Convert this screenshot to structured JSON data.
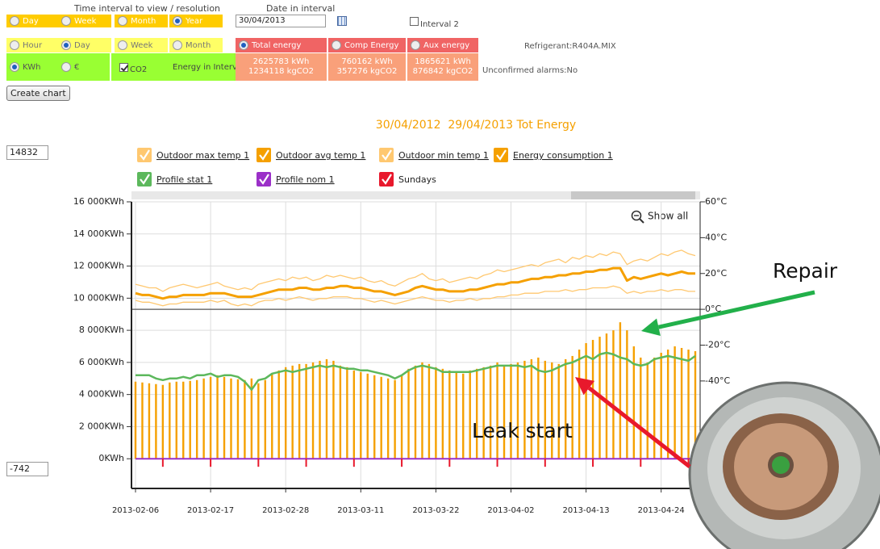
{
  "controls": {
    "interval_label": "Time interval to view / resolution",
    "date_label": "Date in interval",
    "interval_options": [
      "Day",
      "Week",
      "Month",
      "Year"
    ],
    "interval_selected": 3,
    "resolution_options": [
      "Hour",
      "Day",
      "Week",
      "Month"
    ],
    "resolution_selected": 1,
    "unit_options": [
      "KWh",
      "€"
    ],
    "unit_selected": 0,
    "co2": {
      "label": "CO2",
      "checked": true
    },
    "date_value": "30/04/2013",
    "interval2": {
      "label": "Interval 2",
      "checked": false
    },
    "energy_in_interval": "Energy in Interval",
    "energy_types": [
      {
        "label": "Total energy",
        "kwh": "2625783 kWh",
        "co2": "1234118 kgCO2"
      },
      {
        "label": "Comp Energy",
        "kwh": "760162 kWh",
        "co2": "357276 kgCO2"
      },
      {
        "label": "Aux energy",
        "kwh": "1865621 kWh",
        "co2": "876842 kgCO2"
      }
    ],
    "energy_selected": 0,
    "refrigerant": "Refrigerant:R404A.MIX",
    "alarms": "Unconfirmed alarms:No",
    "button": "Create chart",
    "range_max": "14832",
    "range_min": "-742"
  },
  "chart_data": {
    "type": "bar",
    "title": "30/04/2012  29/04/2013 Tot Energy",
    "zoom_label": "Show all",
    "annotations": [
      "Repair",
      "Leak start"
    ],
    "categories": [
      "2013-02-06",
      null,
      null,
      null,
      null,
      null,
      null,
      null,
      null,
      null,
      null,
      "2013-02-17",
      null,
      null,
      null,
      null,
      null,
      null,
      null,
      null,
      null,
      null,
      "2013-02-28",
      null,
      null,
      null,
      null,
      null,
      null,
      null,
      null,
      null,
      null,
      "2013-03-11",
      null,
      null,
      null,
      null,
      null,
      null,
      null,
      null,
      null,
      null,
      "2013-03-22",
      null,
      null,
      null,
      null,
      null,
      null,
      null,
      null,
      null,
      null,
      "2013-04-02",
      null,
      null,
      null,
      null,
      null,
      null,
      null,
      null,
      null,
      null,
      "2013-04-13",
      null,
      null,
      null,
      null,
      null,
      null,
      null,
      null,
      null,
      null,
      "2013-04-24",
      null,
      null,
      null,
      null,
      null
    ],
    "ylim": [
      -1850,
      16000
    ],
    "yticks": [
      {
        "value": 0,
        "label": "0KWh"
      },
      {
        "value": 2000,
        "label": "2 000KWh"
      },
      {
        "value": 4000,
        "label": "4 000KWh"
      },
      {
        "value": 6000,
        "label": "6 000KWh"
      },
      {
        "value": 8000,
        "label": "8 000KWh"
      },
      {
        "value": 10000,
        "label": "10 000KWh"
      },
      {
        "value": 12000,
        "label": "12 000KWh"
      },
      {
        "value": 14000,
        "label": "14 000KWh"
      },
      {
        "value": 16000,
        "label": "16 000KWh"
      }
    ],
    "y2lim": [
      -100,
      60
    ],
    "y2ticks": [
      {
        "value": -40,
        "label": "-40°C"
      },
      {
        "value": -20,
        "label": "-20°C"
      },
      {
        "value": 0,
        "label": "0°C"
      },
      {
        "value": 20,
        "label": "20°C"
      },
      {
        "value": 40,
        "label": "40°C"
      },
      {
        "value": 60,
        "label": "60°C"
      }
    ],
    "grid": true,
    "series": [
      {
        "name": "Outdoor max temp 1",
        "type": "line",
        "axis": "y2",
        "color": "#ffc870",
        "width": 1.3,
        "values": [
          14,
          13,
          12,
          12,
          10,
          12,
          13,
          14,
          13,
          12,
          13,
          14,
          15,
          13,
          12,
          11,
          12,
          11,
          14,
          15,
          16,
          17,
          16,
          18,
          17,
          18,
          16,
          17,
          19,
          18,
          19,
          18,
          17,
          18,
          16,
          15,
          16,
          14,
          13,
          15,
          17,
          18,
          20,
          17,
          16,
          17,
          15,
          16,
          17,
          18,
          17,
          19,
          20,
          22,
          21,
          22,
          23,
          24,
          25,
          24,
          26,
          27,
          28,
          26,
          29,
          28,
          30,
          29,
          31,
          30,
          32,
          31,
          25,
          27,
          28,
          27,
          29,
          31,
          30,
          32,
          33,
          31,
          30
        ]
      },
      {
        "name": "Outdoor avg temp 1",
        "type": "line",
        "axis": "y2",
        "color": "#f5a000",
        "width": 3,
        "values": [
          9,
          8,
          8,
          7,
          6,
          7,
          7,
          8,
          8,
          8,
          8,
          9,
          9,
          9,
          8,
          7,
          7,
          7,
          8,
          9,
          10,
          11,
          11,
          11,
          12,
          12,
          11,
          11,
          12,
          12,
          13,
          13,
          12,
          12,
          11,
          10,
          10,
          9,
          8,
          9,
          10,
          12,
          13,
          12,
          11,
          11,
          10,
          10,
          10,
          11,
          11,
          12,
          13,
          14,
          14,
          15,
          15,
          16,
          17,
          17,
          18,
          18,
          19,
          19,
          20,
          20,
          21,
          21,
          22,
          22,
          23,
          23,
          16,
          18,
          17,
          18,
          19,
          20,
          19,
          20,
          21,
          20,
          20
        ]
      },
      {
        "name": "Outdoor min temp 1",
        "type": "line",
        "axis": "y2",
        "color": "#ffc870",
        "width": 1.3,
        "values": [
          5,
          4,
          4,
          3,
          2,
          3,
          3,
          4,
          4,
          4,
          4,
          5,
          4,
          5,
          3,
          2,
          3,
          2,
          4,
          5,
          5,
          6,
          5,
          6,
          7,
          6,
          5,
          6,
          6,
          7,
          7,
          7,
          6,
          6,
          5,
          4,
          5,
          4,
          3,
          4,
          5,
          6,
          7,
          6,
          5,
          5,
          4,
          5,
          5,
          6,
          5,
          6,
          6,
          7,
          7,
          8,
          8,
          9,
          9,
          9,
          10,
          10,
          10,
          11,
          10,
          11,
          11,
          12,
          12,
          12,
          13,
          12,
          9,
          10,
          9,
          10,
          10,
          11,
          10,
          11,
          11,
          10,
          10
        ]
      },
      {
        "name": "Energy consumption 1",
        "type": "bar",
        "color": "#f5a000",
        "values": [
          4800,
          4750,
          4700,
          4650,
          4600,
          4750,
          4800,
          4800,
          4850,
          4900,
          5000,
          5100,
          5200,
          5100,
          5000,
          4950,
          4900,
          5000,
          4700,
          4900,
          5300,
          5500,
          5700,
          5800,
          5900,
          5900,
          6000,
          6100,
          6200,
          6100,
          5800,
          5700,
          5500,
          5400,
          5300,
          5200,
          5100,
          5000,
          4900,
          5200,
          5600,
          5800,
          6000,
          5900,
          5700,
          5600,
          5500,
          5400,
          5300,
          5500,
          5600,
          5700,
          5800,
          6000,
          5800,
          5900,
          6000,
          6100,
          6200,
          6300,
          6100,
          6000,
          5900,
          6200,
          6400,
          6800,
          7200,
          7400,
          7600,
          7800,
          8000,
          8500,
          8000,
          7000,
          6300,
          6000,
          6300,
          6600,
          6800,
          7000,
          6900,
          6800,
          6700
        ]
      },
      {
        "name": "Profile stat 1",
        "type": "line",
        "color": "#5cb85c",
        "width": 2.5,
        "values": [
          5200,
          5200,
          5200,
          5000,
          4900,
          5000,
          5000,
          5100,
          5000,
          5200,
          5200,
          5300,
          5100,
          5200,
          5200,
          5100,
          4800,
          4300,
          4900,
          5000,
          5300,
          5400,
          5500,
          5400,
          5500,
          5600,
          5700,
          5800,
          5700,
          5800,
          5700,
          5600,
          5600,
          5500,
          5500,
          5400,
          5300,
          5200,
          5000,
          5200,
          5500,
          5700,
          5800,
          5700,
          5600,
          5400,
          5400,
          5400,
          5400,
          5400,
          5500,
          5600,
          5700,
          5800,
          5800,
          5800,
          5800,
          5700,
          5800,
          5500,
          5400,
          5500,
          5700,
          5900,
          6000,
          6200,
          6400,
          6200,
          6500,
          6600,
          6500,
          6300,
          6200,
          5900,
          5800,
          5900,
          6200,
          6300,
          6400,
          6300,
          6200,
          6100,
          6400
        ]
      },
      {
        "name": "Profile nom 1",
        "type": "line",
        "color": "#9b30c8",
        "width": 2,
        "values": [
          0,
          0,
          0,
          0,
          0,
          0,
          0,
          0,
          0,
          0,
          0,
          0,
          0,
          0,
          0,
          0,
          0,
          0,
          0,
          0,
          0,
          0,
          0,
          0,
          0,
          0,
          0,
          0,
          0,
          0,
          0,
          0,
          0,
          0,
          0,
          0,
          0,
          0,
          0,
          0,
          0,
          0,
          0,
          0,
          0,
          0,
          0,
          0,
          0,
          0,
          0,
          0,
          0,
          0,
          0,
          0,
          0,
          0,
          0,
          0,
          0,
          0,
          0,
          0,
          0,
          0,
          0,
          0,
          0,
          0,
          0,
          0,
          0,
          0,
          0,
          0,
          0,
          0,
          0,
          0,
          0,
          0,
          0
        ]
      },
      {
        "name": "Sundays",
        "type": "marker",
        "color": "#e8182c",
        "values": [
          null,
          null,
          null,
          null,
          -500,
          null,
          null,
          null,
          null,
          null,
          null,
          -500,
          null,
          null,
          null,
          null,
          null,
          null,
          -500,
          null,
          null,
          null,
          null,
          null,
          null,
          -500,
          null,
          null,
          null,
          null,
          null,
          null,
          -500,
          null,
          null,
          null,
          null,
          null,
          null,
          -500,
          null,
          null,
          null,
          null,
          null,
          null,
          -500,
          null,
          null,
          null,
          null,
          null,
          null,
          -500,
          null,
          null,
          null,
          null,
          null,
          null,
          -500,
          null,
          null,
          null,
          null,
          null,
          null,
          -500,
          null,
          null,
          null,
          null,
          null,
          null,
          -500,
          null,
          null,
          null,
          null,
          null,
          null,
          -500,
          null
        ]
      }
    ]
  }
}
